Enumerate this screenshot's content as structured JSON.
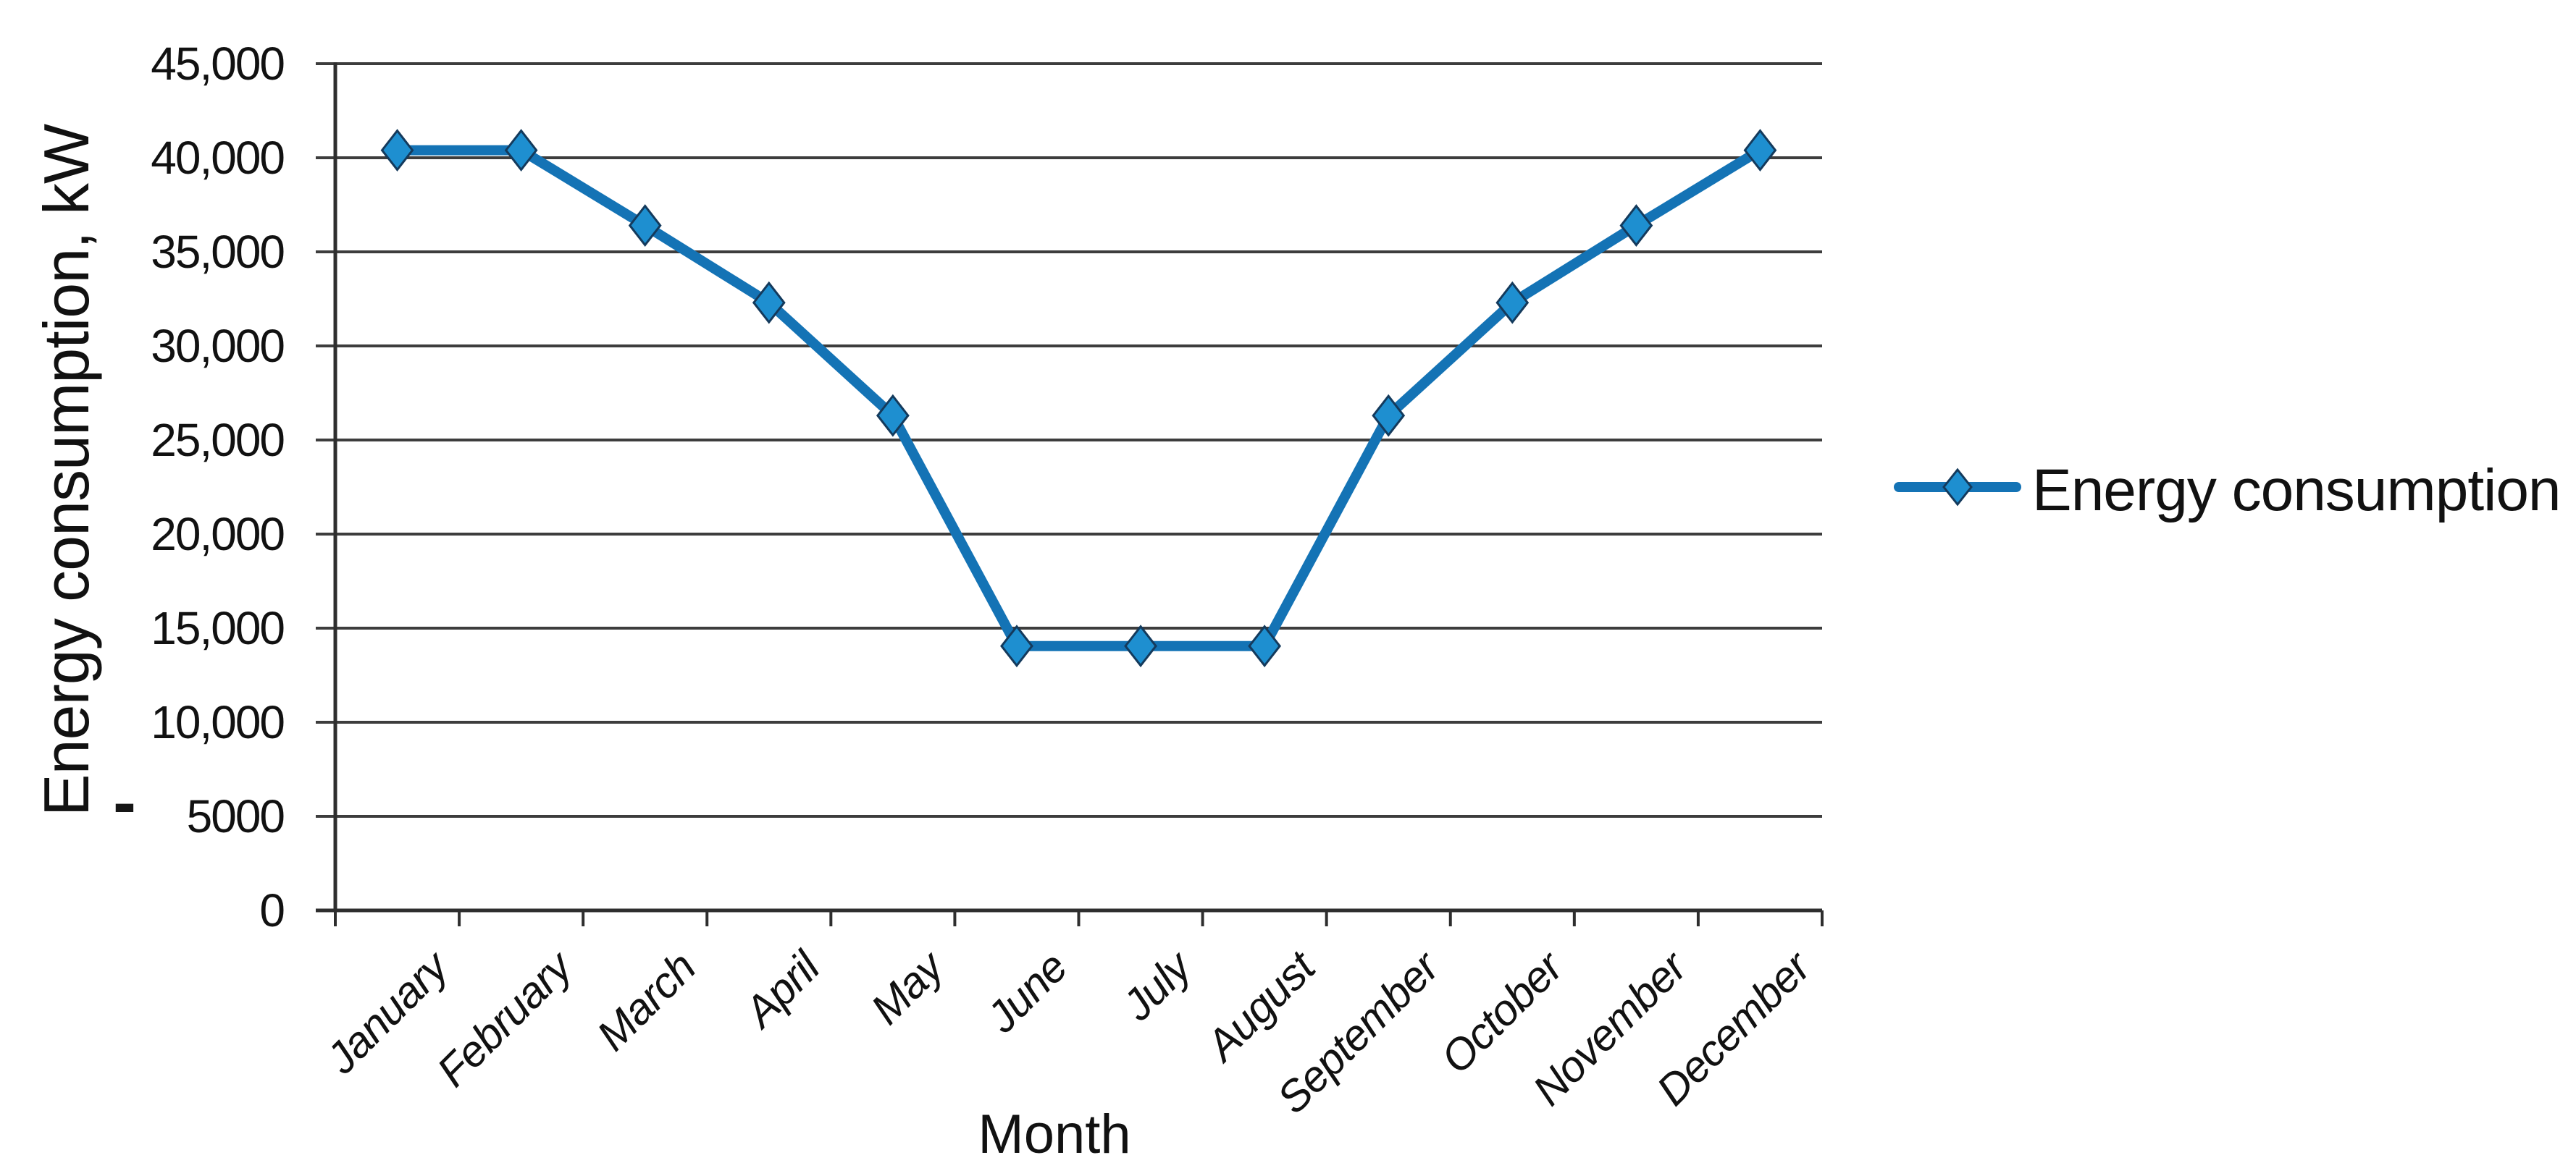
{
  "chart_data": {
    "type": "line",
    "xlabel": "Month",
    "ylabel": "Energy consumption, kW",
    "categories": [
      "January",
      "February",
      "March",
      "April",
      "May",
      "June",
      "July",
      "August",
      "September",
      "October",
      "November",
      "December"
    ],
    "series": [
      {
        "name": "Energy consumption",
        "values": [
          40400,
          40400,
          36400,
          32300,
          26300,
          14050,
          14050,
          14050,
          26300,
          32300,
          36400,
          40400
        ]
      }
    ],
    "ylim": [
      0,
      45000
    ],
    "ytick_step": 5000,
    "yticks": [
      {
        "value": 45000,
        "label": "45,000"
      },
      {
        "value": 40000,
        "label": "40,000"
      },
      {
        "value": 35000,
        "label": "35,000"
      },
      {
        "value": 30000,
        "label": "30,000"
      },
      {
        "value": 25000,
        "label": "25,000"
      },
      {
        "value": 20000,
        "label": "20,000"
      },
      {
        "value": 15000,
        "label": "15,000"
      },
      {
        "value": 10000,
        "label": "10,000"
      },
      {
        "value": 5000,
        "label": "5000"
      },
      {
        "value": 0,
        "label": "0"
      }
    ],
    "stray_dash_label": "-",
    "grid": "horizontal-only",
    "legend_position": "right",
    "marker": "diamond",
    "colors": {
      "line": "#1473b5",
      "marker_fill": "#1e8fd0",
      "marker_stroke": "#143a5c",
      "grid": "#3d3d3d",
      "axis": "#2e2e2e",
      "text": "#111111"
    }
  }
}
